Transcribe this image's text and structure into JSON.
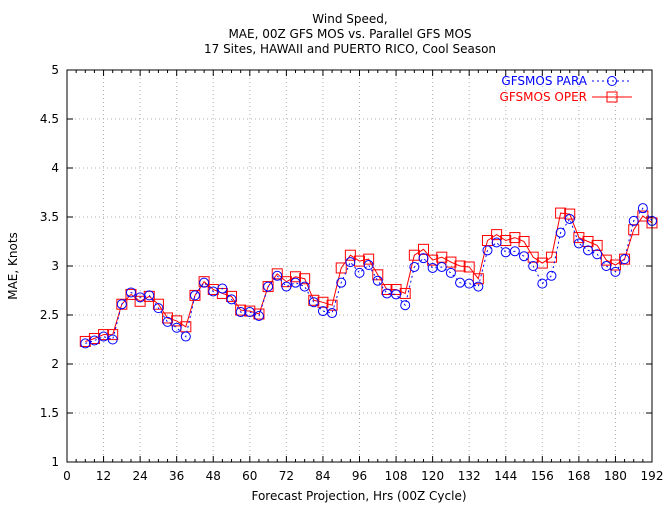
{
  "chart_data": {
    "type": "line",
    "title_lines": [
      "Wind Speed,",
      "MAE, 00Z GFS MOS vs. Parallel GFS MOS",
      "17 Sites, HAWAII and PUERTO RICO, Cool Season"
    ],
    "xlabel": "Forecast Projection, Hrs (00Z Cycle)",
    "ylabel": "MAE, Knots",
    "xlim": [
      0,
      192
    ],
    "ylim": [
      1,
      5
    ],
    "xticks": [
      "0",
      "12",
      "24",
      "36",
      "48",
      "60",
      "72",
      "84",
      "96",
      "108",
      "120",
      "132",
      "144",
      "156",
      "168",
      "180",
      "192"
    ],
    "yticks": [
      "1",
      "1.5",
      "2",
      "2.5",
      "3",
      "3.5",
      "4",
      "4.5",
      "5"
    ],
    "grid": true,
    "legend_position": "top-right",
    "x": [
      6,
      9,
      12,
      15,
      18,
      21,
      24,
      27,
      30,
      33,
      36,
      39,
      42,
      45,
      48,
      51,
      54,
      57,
      60,
      63,
      66,
      69,
      72,
      75,
      78,
      81,
      84,
      87,
      90,
      93,
      96,
      99,
      102,
      105,
      108,
      111,
      114,
      117,
      120,
      123,
      126,
      129,
      132,
      135,
      138,
      141,
      144,
      147,
      150,
      153,
      156,
      159,
      162,
      165,
      168,
      171,
      174,
      177,
      180,
      183,
      186,
      189,
      192
    ],
    "series": [
      {
        "name": "GFSMOS PARA",
        "color": "#0000ff",
        "marker": "circle",
        "line": "dotted",
        "values": [
          2.21,
          2.24,
          2.28,
          2.25,
          2.61,
          2.73,
          2.68,
          2.7,
          2.57,
          2.43,
          2.37,
          2.28,
          2.7,
          2.83,
          2.74,
          2.77,
          2.66,
          2.53,
          2.53,
          2.49,
          2.79,
          2.9,
          2.79,
          2.83,
          2.79,
          2.63,
          2.54,
          2.52,
          2.83,
          3.04,
          2.93,
          3.01,
          2.85,
          2.72,
          2.71,
          2.6,
          2.99,
          3.08,
          2.98,
          2.99,
          2.93,
          2.83,
          2.82,
          2.79,
          3.16,
          3.24,
          3.14,
          3.15,
          3.1,
          3.0,
          2.82,
          2.9,
          3.34,
          3.48,
          3.23,
          3.16,
          3.12,
          3.0,
          2.94,
          3.07,
          3.46,
          3.59,
          3.46
        ]
      },
      {
        "name": "GFSMOS OPER",
        "color": "#ff0000",
        "marker": "square",
        "line": "solid",
        "values": [
          2.23,
          2.26,
          2.3,
          2.3,
          2.61,
          2.71,
          2.64,
          2.69,
          2.61,
          2.47,
          2.44,
          2.38,
          2.7,
          2.84,
          2.76,
          2.72,
          2.69,
          2.55,
          2.54,
          2.51,
          2.79,
          2.92,
          2.84,
          2.89,
          2.87,
          2.65,
          2.63,
          2.6,
          2.98,
          3.11,
          3.05,
          3.07,
          2.91,
          2.76,
          2.76,
          2.72,
          3.11,
          3.17,
          3.06,
          3.09,
          3.04,
          3.0,
          2.99,
          2.87,
          3.26,
          3.32,
          3.26,
          3.29,
          3.25,
          3.09,
          3.03,
          3.09,
          3.54,
          3.53,
          3.29,
          3.25,
          3.21,
          3.06,
          3.01,
          3.07,
          3.37,
          3.51,
          3.44
        ]
      }
    ]
  }
}
